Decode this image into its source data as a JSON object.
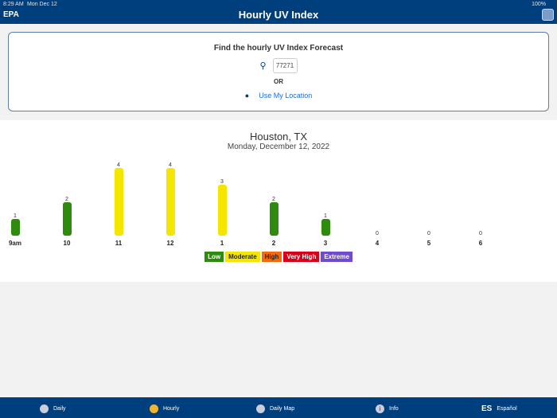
{
  "status": {
    "time": "8:29 AM",
    "date": "Mon Dec 12",
    "battery": "100%"
  },
  "header": {
    "logo": "EPA",
    "title": "Hourly UV Index"
  },
  "search": {
    "heading": "Find the hourly UV Index Forecast",
    "zip": "77271",
    "or": "OR",
    "use_location": "Use My Location"
  },
  "forecast": {
    "city": "Houston, TX",
    "date": "Monday, December 12, 2022"
  },
  "chart_data": {
    "type": "bar",
    "categories": [
      "9am",
      "10",
      "11",
      "12",
      "1",
      "2",
      "3",
      "4",
      "5",
      "6"
    ],
    "values": [
      1,
      2,
      4,
      4,
      3,
      2,
      1,
      0,
      0,
      0
    ],
    "colors": {
      "low": "#2e8b0e",
      "moderate": "#f5e600"
    }
  },
  "legend": [
    {
      "label": "Low",
      "bg": "#2e8b0e",
      "fg": "#fff"
    },
    {
      "label": "Moderate",
      "bg": "#f5e600",
      "fg": "#222"
    },
    {
      "label": "High",
      "bg": "#f26a0a",
      "fg": "#222"
    },
    {
      "label": "Very High",
      "bg": "#d9001b",
      "fg": "#fff"
    },
    {
      "label": "Extreme",
      "bg": "#6f4ccc",
      "fg": "#fff"
    }
  ],
  "nav": [
    {
      "label": "Daily",
      "icon": "gear-icon"
    },
    {
      "label": "Hourly",
      "icon": "clock-icon"
    },
    {
      "label": "Daily Map",
      "icon": "globe-icon"
    },
    {
      "label": "Info",
      "icon": "info-icon"
    },
    {
      "label": "Español",
      "icon": "ES"
    }
  ]
}
